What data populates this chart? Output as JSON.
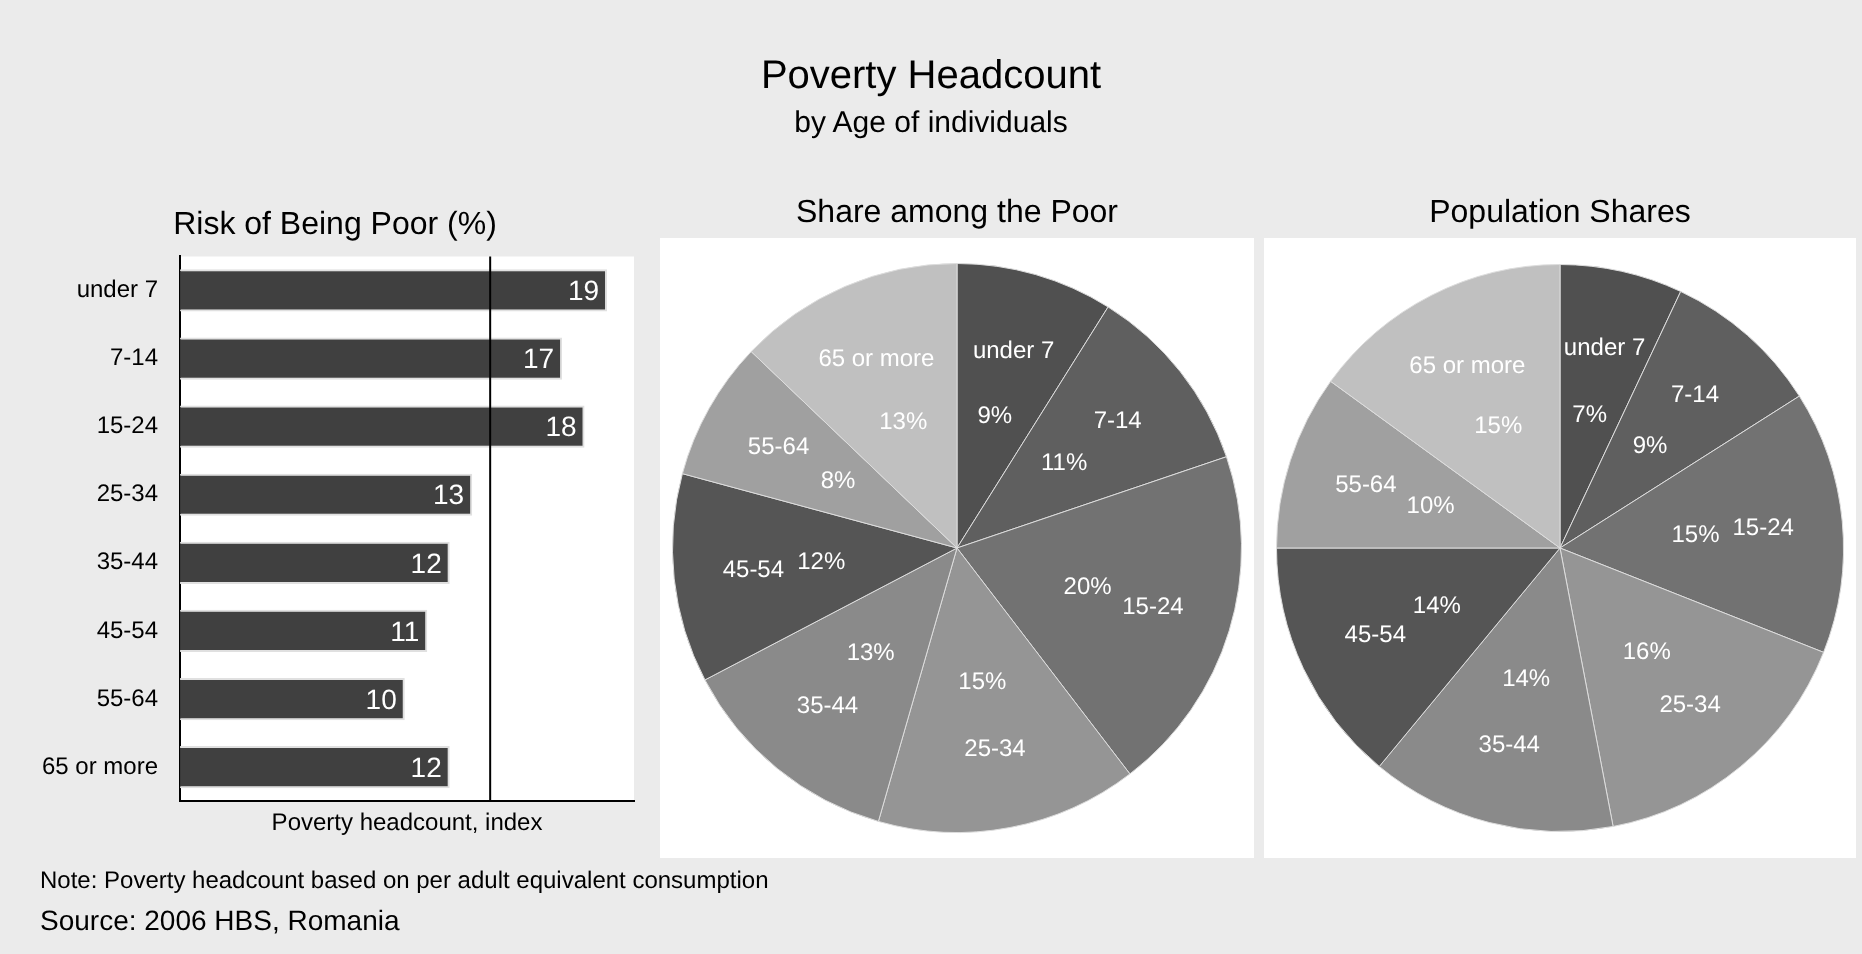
{
  "chart_data": [
    {
      "type": "other",
      "title": "Poverty Headcount",
      "subtitle": "by Age of individuals"
    },
    {
      "type": "bar",
      "orientation": "horizontal",
      "title": "Risk of Being Poor (%)",
      "xlabel": "Poverty headcount, index",
      "categories": [
        "under 7",
        "7-14",
        "15-24",
        "25-34",
        "35-44",
        "45-54",
        "55-64",
        "65 or more"
      ],
      "values": [
        19,
        17,
        18,
        13,
        12,
        11,
        10,
        12
      ],
      "color": "#404040",
      "xlim": [
        0,
        20.2
      ],
      "tick_labels": "y",
      "data_labels": true,
      "grid": false,
      "legend": false,
      "ref_lines": [
        {
          "axis": "x",
          "value": 13.8,
          "color": "#000000"
        }
      ]
    },
    {
      "type": "pie",
      "title": "Share among the Poor",
      "categories": [
        "under 7",
        "7-14",
        "15-24",
        "25-34",
        "35-44",
        "45-54",
        "55-64",
        "65 or more"
      ],
      "values": [
        9,
        11,
        20,
        15,
        13,
        12,
        8,
        13
      ],
      "value_labels": [
        "9%",
        "11%",
        "20%",
        "15%",
        "13%",
        "12%",
        "8%",
        "13%"
      ],
      "colors": [
        "#505050",
        "#5f5f5f",
        "#727272",
        "#959595",
        "#8a8a8a",
        "#555555",
        "#a0a0a0",
        "#c0c0c0"
      ],
      "legend": false
    },
    {
      "type": "pie",
      "title": "Population Shares",
      "categories": [
        "under 7",
        "7-14",
        "15-24",
        "25-34",
        "35-44",
        "45-54",
        "55-64",
        "65 or more"
      ],
      "values": [
        7,
        9,
        15,
        16,
        14,
        14,
        10,
        15
      ],
      "value_labels": [
        "7%",
        "9%",
        "15%",
        "16%",
        "14%",
        "14%",
        "10%",
        "15%"
      ],
      "colors": [
        "#505050",
        "#5f5f5f",
        "#727272",
        "#959595",
        "#8a8a8a",
        "#555555",
        "#a0a0a0",
        "#c0c0c0"
      ],
      "legend": false
    },
    {
      "type": "other",
      "annotations": [
        "Note: Poverty headcount based on per adult equivalent consumption",
        "Source: 2006 HBS, Romania"
      ]
    }
  ]
}
